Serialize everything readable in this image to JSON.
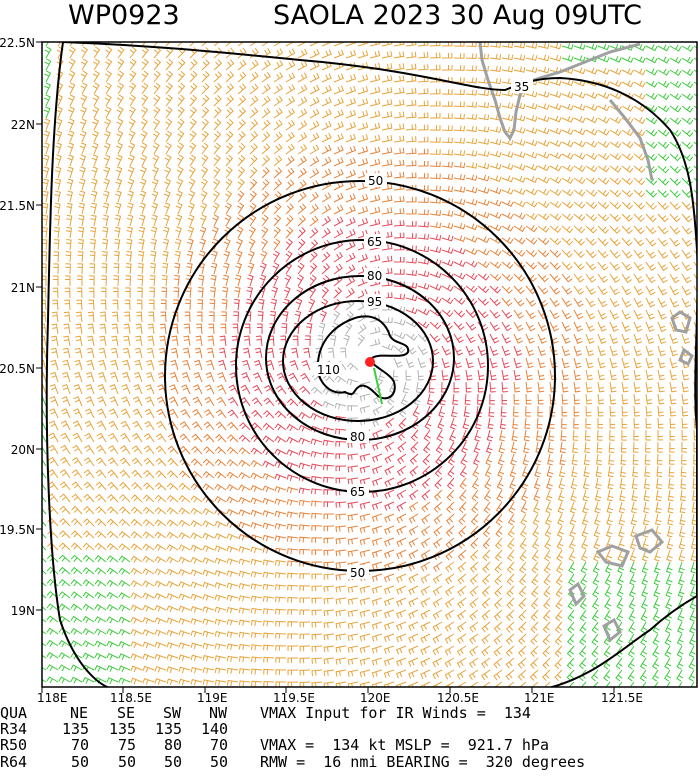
{
  "title": {
    "storm_id": "WP0923",
    "name_date": "SAOLA 2023 30 Aug 09UTC"
  },
  "map": {
    "lon_ticks": [
      "118E",
      "118.5E",
      "119E",
      "119.5E",
      "120E",
      "120.5E",
      "121E",
      "121.5E"
    ],
    "lat_ticks": [
      "22.5N",
      "22N",
      "21.5N",
      "21N",
      "20.5N",
      "20N",
      "19.5N",
      "19N"
    ],
    "contours": [
      {
        "label": "35"
      },
      {
        "label": "50"
      },
      {
        "label": "50"
      },
      {
        "label": "65"
      },
      {
        "label": "65"
      },
      {
        "label": "80"
      },
      {
        "label": "80"
      },
      {
        "label": "95"
      },
      {
        "label": "110"
      }
    ],
    "colors": {
      "barb_34_50": "#e8a43a",
      "barb_50_64": "#e8843a",
      "barb_64_plus": "#e84a5a",
      "barb_core": "#b4b4b4",
      "barb_under_34": "#3ccc3c",
      "contour": "#000000",
      "land": "#a0a0a0",
      "center": "#ff2020"
    }
  },
  "table": {
    "header": [
      "QUA",
      "NE",
      "SE",
      "SW",
      "NW"
    ],
    "rows": [
      {
        "label": "R34",
        "ne": "135",
        "se": "135",
        "sw": "135",
        "nw": "140"
      },
      {
        "label": "R50",
        "ne": "70",
        "se": "75",
        "sw": "80",
        "nw": "70"
      },
      {
        "label": "R64",
        "ne": "50",
        "se": "50",
        "sw": "50",
        "nw": "50"
      }
    ]
  },
  "info": {
    "line1": "VMAX Input for IR Winds =  134",
    "line2": "VMAX =  134 kt MSLP =  921.7 hPa",
    "line3": "RMW =  16 nmi BEARING =  320 degrees"
  }
}
